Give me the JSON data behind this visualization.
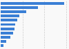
{
  "values": [
    14.5,
    8.5,
    5.8,
    4.2,
    3.8,
    3.4,
    3.1,
    2.8,
    2.2,
    1.2,
    0.7
  ],
  "bar_color": "#3a7fd5",
  "background_color": "#f9f9f9",
  "plot_bg_color": "#f9f9f9",
  "grid_color": "#cccccc",
  "xlim": [
    0,
    15.5
  ]
}
